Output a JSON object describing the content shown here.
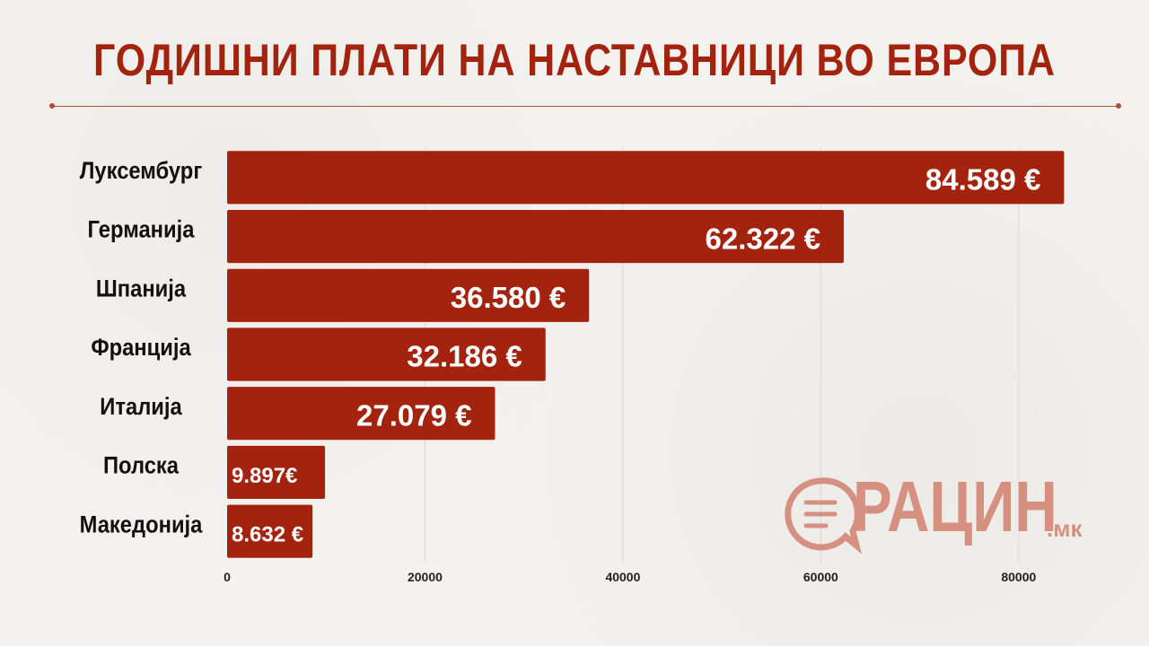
{
  "title": "ГОДИШНИ ПЛАТИ НА НАСТАВНИЦИ ВО ЕВРОПА",
  "brand": {
    "name": "РАЦИН",
    "suffix": ".мк",
    "icon": "speech-bubble-icon",
    "color": "#d5907f"
  },
  "colors": {
    "bar": "#a3230f",
    "title": "#a3230f",
    "grid": "#d9d6d2"
  },
  "chart_data": {
    "type": "bar",
    "orientation": "horizontal",
    "categories": [
      "Луксембург",
      "Германија",
      "Шпанија",
      "Франција",
      "Италија",
      "Полска",
      "Македонија"
    ],
    "values": [
      84589,
      62322,
      36580,
      32186,
      27079,
      9897,
      8632
    ],
    "value_labels": [
      "84.589 €",
      "62.322 €",
      "36.580 €",
      "32.186 €",
      "27.079 €",
      "9.897€",
      "8.632 €"
    ],
    "xticks": [
      0,
      20000,
      40000,
      60000,
      80000
    ],
    "xlim": [
      0,
      88000
    ],
    "grid": true,
    "legend": "none",
    "title": "ГОДИШНИ ПЛАТИ НА НАСТАВНИЦИ ВО ЕВРОПА",
    "xlabel": "",
    "ylabel": ""
  }
}
